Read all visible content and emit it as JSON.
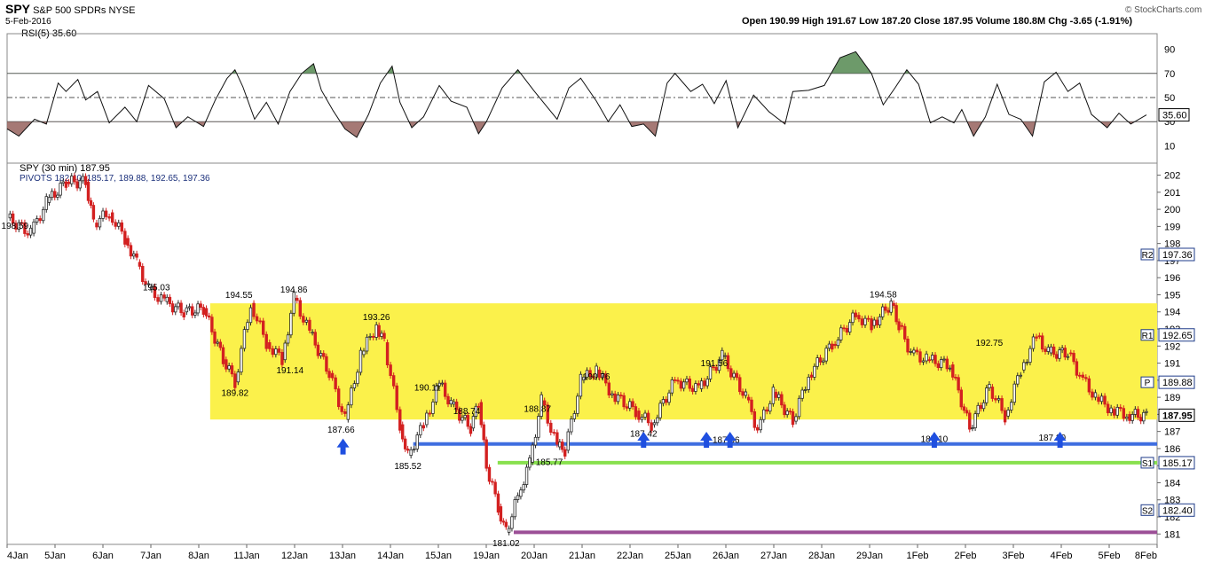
{
  "header": {
    "symbol": "SPY",
    "name": "S&P 500 SPDRs NYSE",
    "date": "5-Feb-2016",
    "ohlc": "Open 190.99  High 191.67  Low 187.20  Close 187.95  Volume 180.8M  Chg -3.65 (-1.91%)",
    "credit": "© StockCharts.com"
  },
  "rsi_panel": {
    "label": "RSI(5) 35.60",
    "levels": [
      90,
      70,
      50,
      30,
      10
    ],
    "current": 35.6,
    "current_label": "35.60"
  },
  "price_panel": {
    "legend1": "SPY (30 min) 187.95",
    "legend2": "PIVOTS 182.40, 185.17, 189.88, 192.65, 197.36",
    "yticks": [
      181,
      182,
      183,
      184,
      185,
      186,
      187,
      188,
      189,
      190,
      191,
      192,
      193,
      194,
      195,
      196,
      197,
      198,
      199,
      200,
      201,
      202
    ],
    "close_label": "187.95",
    "pivot_tags": [
      {
        "tag": "R2",
        "value": "197.36"
      },
      {
        "tag": "R1",
        "value": "192.65"
      },
      {
        "tag": "P",
        "value": "189.88"
      },
      {
        "tag": "S1",
        "value": "185.17"
      },
      {
        "tag": "S2",
        "value": "182.40"
      }
    ]
  },
  "chart_data": {
    "type": "candlestick",
    "interval": "30 min",
    "x_labels": [
      "4Jan",
      "5Jan",
      "6Jan",
      "7Jan",
      "8Jan",
      "11Jan",
      "12Jan",
      "13Jan",
      "14Jan",
      "15Jan",
      "19Jan",
      "20Jan",
      "21Jan",
      "22Jan",
      "25Jan",
      "26Jan",
      "27Jan",
      "28Jan",
      "29Jan",
      "1Feb",
      "2Feb",
      "3Feb",
      "4Feb",
      "5Feb",
      "8Feb"
    ],
    "ylim": [
      180.6,
      202.6
    ],
    "price_path": [
      [
        0,
        199.5
      ],
      [
        0.6,
        198.6
      ],
      [
        1,
        200.4
      ],
      [
        1.5,
        201.6
      ],
      [
        2,
        201.6
      ],
      [
        2.2,
        199.2
      ],
      [
        2.6,
        199.8
      ],
      [
        3,
        198.3
      ],
      [
        3.3,
        196.9
      ],
      [
        3.6,
        195.3
      ],
      [
        4,
        194.6
      ],
      [
        4.5,
        194.0
      ],
      [
        5,
        194.2
      ],
      [
        5.5,
        191.2
      ],
      [
        5.8,
        189.9
      ],
      [
        6.2,
        194.5
      ],
      [
        6.6,
        192.2
      ],
      [
        7,
        191.2
      ],
      [
        7.3,
        194.8
      ],
      [
        7.7,
        192.8
      ],
      [
        8.2,
        190.4
      ],
      [
        8.6,
        187.7
      ],
      [
        9,
        191.5
      ],
      [
        9.4,
        193.2
      ],
      [
        9.6,
        192.2
      ],
      [
        10,
        187.4
      ],
      [
        10.2,
        185.6
      ],
      [
        10.6,
        187.4
      ],
      [
        11,
        189.8
      ],
      [
        11.3,
        188.6
      ],
      [
        11.8,
        187.2
      ],
      [
        12,
        188.7
      ],
      [
        12.2,
        184.9
      ],
      [
        12.5,
        182.6
      ],
      [
        12.7,
        181.1
      ],
      [
        13,
        183.2
      ],
      [
        13.3,
        185.2
      ],
      [
        13.6,
        188.8
      ],
      [
        14,
        186.1
      ],
      [
        14.2,
        185.9
      ],
      [
        14.6,
        190.0
      ],
      [
        15,
        190.6
      ],
      [
        15.4,
        189.2
      ],
      [
        16,
        188.2
      ],
      [
        16.4,
        187.4
      ],
      [
        17,
        190.0
      ],
      [
        17.6,
        189.5
      ],
      [
        18.2,
        191.4
      ],
      [
        18.8,
        189.0
      ],
      [
        19.1,
        187.1
      ],
      [
        19.5,
        189.3
      ],
      [
        20,
        187.6
      ],
      [
        20.4,
        190.3
      ],
      [
        21,
        192.1
      ],
      [
        21.6,
        193.8
      ],
      [
        22,
        193.2
      ],
      [
        22.5,
        194.5
      ],
      [
        22.7,
        193.2
      ],
      [
        23,
        191.6
      ],
      [
        23.4,
        191.2
      ],
      [
        24,
        190.9
      ],
      [
        24.5,
        187.2
      ],
      [
        25,
        189.6
      ],
      [
        25.4,
        187.9
      ],
      [
        25.8,
        190.6
      ],
      [
        26.2,
        192.6
      ],
      [
        26.5,
        191.6
      ],
      [
        27,
        191.6
      ],
      [
        27.3,
        190.3
      ],
      [
        27.7,
        189.0
      ],
      [
        28.1,
        188.3
      ],
      [
        28.5,
        188.0
      ],
      [
        29,
        187.9
      ]
    ],
    "annotations": [
      {
        "label": "198.59",
        "x": 0.2,
        "y": 198.6
      },
      {
        "label": "195.03",
        "x": 3.8,
        "y": 195.0
      },
      {
        "label": "194.55",
        "x": 5.9,
        "y": 194.55
      },
      {
        "label": "194.86",
        "x": 7.3,
        "y": 194.86
      },
      {
        "label": "189.82",
        "x": 5.8,
        "y": 189.82
      },
      {
        "label": "191.14",
        "x": 7.2,
        "y": 191.14
      },
      {
        "label": "193.26",
        "x": 9.4,
        "y": 193.26
      },
      {
        "label": "187.66",
        "x": 8.5,
        "y": 187.66
      },
      {
        "label": "185.52",
        "x": 10.2,
        "y": 185.52
      },
      {
        "label": "190.11",
        "x": 10.7,
        "y": 190.11
      },
      {
        "label": "188.74",
        "x": 11.7,
        "y": 188.74
      },
      {
        "label": "181.02",
        "x": 12.7,
        "y": 181.02
      },
      {
        "label": "188.87",
        "x": 13.5,
        "y": 188.87
      },
      {
        "label": "185.77",
        "x": 13.8,
        "y": 185.77
      },
      {
        "label": "190.76",
        "x": 15.0,
        "y": 190.76
      },
      {
        "label": "187.42",
        "x": 16.2,
        "y": 187.42
      },
      {
        "label": "191.56",
        "x": 18.0,
        "y": 191.56
      },
      {
        "label": "187.06",
        "x": 18.3,
        "y": 187.06
      },
      {
        "label": "194.58",
        "x": 22.3,
        "y": 194.58
      },
      {
        "label": "187.10",
        "x": 23.6,
        "y": 187.1
      },
      {
        "label": "192.75",
        "x": 25.0,
        "y": 192.75
      },
      {
        "label": "187.20",
        "x": 26.6,
        "y": 187.2
      }
    ],
    "support_lines": [
      {
        "value": 186.27,
        "color": "#3f6ee0",
        "from_x": 10.1
      },
      {
        "value": 185.17,
        "color": "#88e04e",
        "from_x": 12.2
      },
      {
        "value": 181.1,
        "color": "#9b4f96",
        "from_x": 12.6
      }
    ],
    "highlight_zone": {
      "from": 187.7,
      "to": 194.5,
      "color": "#fbf14b"
    },
    "arrow_points": [
      [
        8.55,
        187.0
      ],
      [
        16.2,
        187.4
      ],
      [
        17.8,
        187.4
      ],
      [
        18.4,
        187.4
      ],
      [
        23.6,
        187.4
      ],
      [
        26.8,
        187.4
      ]
    ],
    "rsi": {
      "series": [
        [
          0,
          24
        ],
        [
          0.3,
          18
        ],
        [
          0.7,
          32
        ],
        [
          1,
          28
        ],
        [
          1.3,
          62
        ],
        [
          1.5,
          55
        ],
        [
          1.8,
          65
        ],
        [
          2,
          48
        ],
        [
          2.3,
          55
        ],
        [
          2.6,
          29
        ],
        [
          3,
          42
        ],
        [
          3.3,
          30
        ],
        [
          3.6,
          60
        ],
        [
          4,
          49
        ],
        [
          4.3,
          25
        ],
        [
          4.6,
          34
        ],
        [
          5,
          26
        ],
        [
          5.3,
          48
        ],
        [
          5.6,
          66
        ],
        [
          5.8,
          73
        ],
        [
          6,
          59
        ],
        [
          6.3,
          32
        ],
        [
          6.6,
          46
        ],
        [
          6.9,
          28
        ],
        [
          7.2,
          55
        ],
        [
          7.5,
          70
        ],
        [
          7.8,
          78
        ],
        [
          8,
          56
        ],
        [
          8.3,
          39
        ],
        [
          8.6,
          24
        ],
        [
          8.9,
          17
        ],
        [
          9.2,
          36
        ],
        [
          9.5,
          62
        ],
        [
          9.8,
          76
        ],
        [
          10,
          46
        ],
        [
          10.3,
          25
        ],
        [
          10.6,
          34
        ],
        [
          11,
          60
        ],
        [
          11.3,
          47
        ],
        [
          11.7,
          42
        ],
        [
          12,
          20
        ],
        [
          12.2,
          30
        ],
        [
          12.6,
          58
        ],
        [
          13,
          73
        ],
        [
          13.4,
          56
        ],
        [
          13.7,
          44
        ],
        [
          14,
          32
        ],
        [
          14.3,
          58
        ],
        [
          14.6,
          66
        ],
        [
          15,
          47
        ],
        [
          15.3,
          30
        ],
        [
          15.6,
          44
        ],
        [
          15.9,
          26
        ],
        [
          16.2,
          28
        ],
        [
          16.5,
          18
        ],
        [
          16.8,
          62
        ],
        [
          17,
          70
        ],
        [
          17.4,
          55
        ],
        [
          17.7,
          61
        ],
        [
          18,
          45
        ],
        [
          18.3,
          64
        ],
        [
          18.6,
          25
        ],
        [
          19,
          52
        ],
        [
          19.4,
          38
        ],
        [
          19.8,
          28
        ],
        [
          20,
          55
        ],
        [
          20.4,
          56
        ],
        [
          20.8,
          60
        ],
        [
          21.2,
          83
        ],
        [
          21.6,
          88
        ],
        [
          21.8,
          79
        ],
        [
          22,
          70
        ],
        [
          22.3,
          44
        ],
        [
          22.6,
          58
        ],
        [
          22.9,
          73
        ],
        [
          23.2,
          61
        ],
        [
          23.5,
          29
        ],
        [
          23.8,
          34
        ],
        [
          24.1,
          29
        ],
        [
          24.3,
          40
        ],
        [
          24.6,
          18
        ],
        [
          24.9,
          34
        ],
        [
          25.2,
          61
        ],
        [
          25.5,
          36
        ],
        [
          25.8,
          32
        ],
        [
          26.1,
          18
        ],
        [
          26.4,
          63
        ],
        [
          26.7,
          71
        ],
        [
          27,
          55
        ],
        [
          27.3,
          62
        ],
        [
          27.6,
          36
        ],
        [
          28,
          25
        ],
        [
          28.3,
          37
        ],
        [
          28.6,
          28
        ],
        [
          29,
          35.6
        ]
      ],
      "overbought": 70,
      "oversold": 30,
      "midline": 50
    }
  }
}
